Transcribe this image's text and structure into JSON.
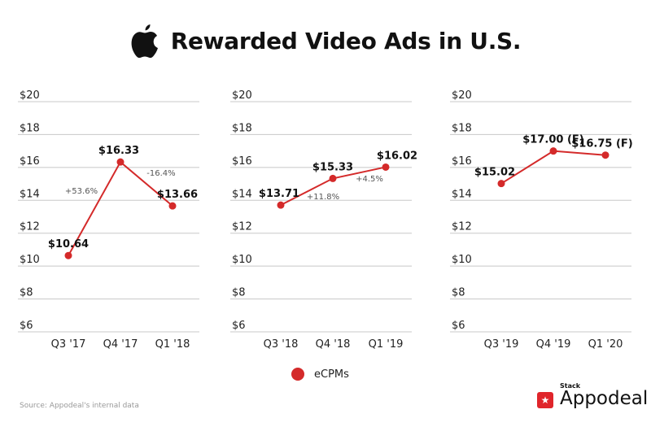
{
  "title": "Rewarded Video Ads in U.S.",
  "icons": {
    "title_logo": "apple-logo-icon",
    "brand_logo": "star-icon"
  },
  "colors": {
    "line": "#d42a2a",
    "grid": "#c8c8c8",
    "brand": "#e0252b"
  },
  "chart_data": [
    {
      "type": "line",
      "categories": [
        "Q3 '17",
        "Q4 '17",
        "Q1 '18"
      ],
      "series": [
        {
          "name": "eCPMs",
          "values": [
            10.64,
            16.33,
            13.66
          ]
        }
      ],
      "data_labels": [
        "$10.64",
        "$16.33",
        "$13.66"
      ],
      "annotations": [
        "+53.6%",
        "-16.4%"
      ],
      "yticks": [
        "$20",
        "$18",
        "$16",
        "$14",
        "$12",
        "$10",
        "$8",
        "$6"
      ],
      "ylim": [
        6,
        20
      ]
    },
    {
      "type": "line",
      "categories": [
        "Q3 '18",
        "Q4 '18",
        "Q1 '19"
      ],
      "series": [
        {
          "name": "eCPMs",
          "values": [
            13.71,
            15.33,
            16.02
          ]
        }
      ],
      "data_labels": [
        "$13.71",
        "$15.33",
        "$16.02"
      ],
      "annotations": [
        "+11.8%",
        "+4.5%"
      ],
      "yticks": [
        "$20",
        "$18",
        "$16",
        "$14",
        "$12",
        "$10",
        "$8",
        "$6"
      ],
      "ylim": [
        6,
        20
      ]
    },
    {
      "type": "line",
      "categories": [
        "Q3 '19",
        "Q4 '19",
        "Q1 '20"
      ],
      "series": [
        {
          "name": "eCPMs",
          "values": [
            15.02,
            17.0,
            16.75
          ]
        }
      ],
      "data_labels": [
        "$15.02",
        "$17.00 (F)",
        "$16.75 (F)"
      ],
      "annotations": [],
      "yticks": [
        "$20",
        "$18",
        "$16",
        "$14",
        "$12",
        "$10",
        "$8",
        "$6"
      ],
      "ylim": [
        6,
        20
      ]
    }
  ],
  "legend": {
    "label": "eCPMs"
  },
  "source": "Source: Appodeal's internal data",
  "brand": {
    "stack": "Stack",
    "name": "Appodeal"
  }
}
